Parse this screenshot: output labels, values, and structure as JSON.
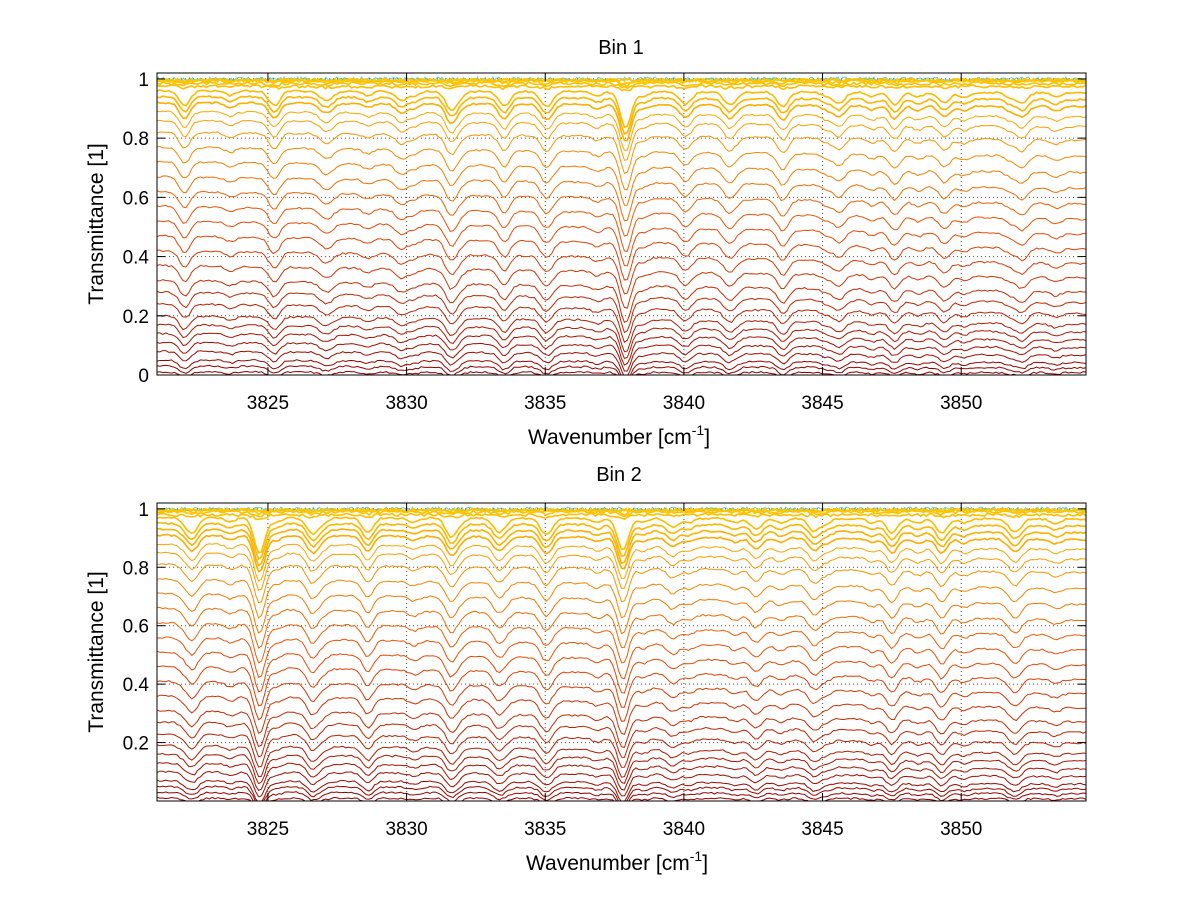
{
  "chart_data": [
    {
      "type": "line",
      "title": "Bin 1",
      "xlabel": "Wavenumber [cm",
      "xlabel_sup": "-1",
      "xlabel_end": "]",
      "ylabel": "Transmittance [1]",
      "xlim": [
        3821,
        3854.5
      ],
      "ylim": [
        0,
        1.02
      ],
      "x_ticks": [
        3825,
        3830,
        3835,
        3840,
        3845,
        3850
      ],
      "y_ticks": [
        0,
        0.2,
        0.4,
        0.6,
        0.8,
        1
      ],
      "y_tick_labels": [
        "0",
        "0.2",
        "0.4",
        "0.6",
        "0.8",
        "1"
      ],
      "grid": true,
      "series_count": 30,
      "series_start_levels": [
        0.01,
        0.03,
        0.05,
        0.08,
        0.11,
        0.14,
        0.17,
        0.2,
        0.24,
        0.28,
        0.32,
        0.37,
        0.42,
        0.47,
        0.52,
        0.57,
        0.62,
        0.67,
        0.72,
        0.77,
        0.82,
        0.86,
        0.89,
        0.92,
        0.94,
        0.96,
        0.975,
        0.985,
        0.993,
        0.998
      ],
      "absorption_lines": [
        {
          "x": 3822.0,
          "depth": 0.3
        },
        {
          "x": 3825.2,
          "depth": 0.3
        },
        {
          "x": 3827.2,
          "depth": 0.2
        },
        {
          "x": 3829.8,
          "depth": 0.25
        },
        {
          "x": 3831.6,
          "depth": 0.5
        },
        {
          "x": 3833.5,
          "depth": 0.3
        },
        {
          "x": 3835.0,
          "depth": 0.35
        },
        {
          "x": 3837.9,
          "depth": 1.0
        },
        {
          "x": 3840.0,
          "depth": 0.25
        },
        {
          "x": 3841.6,
          "depth": 0.3
        },
        {
          "x": 3843.6,
          "depth": 0.3
        },
        {
          "x": 3845.6,
          "depth": 0.3
        },
        {
          "x": 3847.6,
          "depth": 0.35
        },
        {
          "x": 3849.4,
          "depth": 0.3
        },
        {
          "x": 3852.2,
          "depth": 0.3
        }
      ],
      "colors": {
        "low": "#8b0000",
        "mid": "#e8500a",
        "high": "#ffc400",
        "top": "#1fb6c9"
      }
    },
    {
      "type": "line",
      "title": "Bin 2",
      "xlabel": "Wavenumber [cm",
      "xlabel_sup": "-1",
      "xlabel_end": "]",
      "ylabel": "Transmittance [1]",
      "xlim": [
        3821,
        3854.5
      ],
      "ylim": [
        0,
        1.02
      ],
      "x_ticks": [
        3825,
        3830,
        3835,
        3840,
        3845,
        3850
      ],
      "y_ticks": [
        0.2,
        0.4,
        0.6,
        0.8,
        1
      ],
      "y_tick_labels": [
        "0.2",
        "0.4",
        "0.6",
        "0.8",
        "1"
      ],
      "grid": true,
      "series_count": 30,
      "series_start_levels": [
        0.01,
        0.03,
        0.05,
        0.07,
        0.1,
        0.13,
        0.16,
        0.19,
        0.23,
        0.27,
        0.31,
        0.36,
        0.41,
        0.46,
        0.51,
        0.56,
        0.61,
        0.66,
        0.71,
        0.76,
        0.81,
        0.85,
        0.88,
        0.91,
        0.93,
        0.95,
        0.97,
        0.98,
        0.99,
        0.997
      ],
      "absorption_lines": [
        {
          "x": 3822.3,
          "depth": 0.4
        },
        {
          "x": 3824.7,
          "depth": 1.0
        },
        {
          "x": 3826.6,
          "depth": 0.45
        },
        {
          "x": 3828.6,
          "depth": 0.3
        },
        {
          "x": 3831.6,
          "depth": 0.5
        },
        {
          "x": 3833.3,
          "depth": 0.35
        },
        {
          "x": 3835.0,
          "depth": 0.4
        },
        {
          "x": 3837.8,
          "depth": 0.9
        },
        {
          "x": 3839.6,
          "depth": 0.25
        },
        {
          "x": 3842.6,
          "depth": 0.3
        },
        {
          "x": 3844.7,
          "depth": 0.35
        },
        {
          "x": 3847.5,
          "depth": 0.4
        },
        {
          "x": 3849.3,
          "depth": 0.4
        },
        {
          "x": 3852.0,
          "depth": 0.3
        }
      ],
      "colors": {
        "low": "#8b0000",
        "mid": "#e8500a",
        "high": "#ffc400",
        "top": "#1fb6c9"
      }
    }
  ]
}
